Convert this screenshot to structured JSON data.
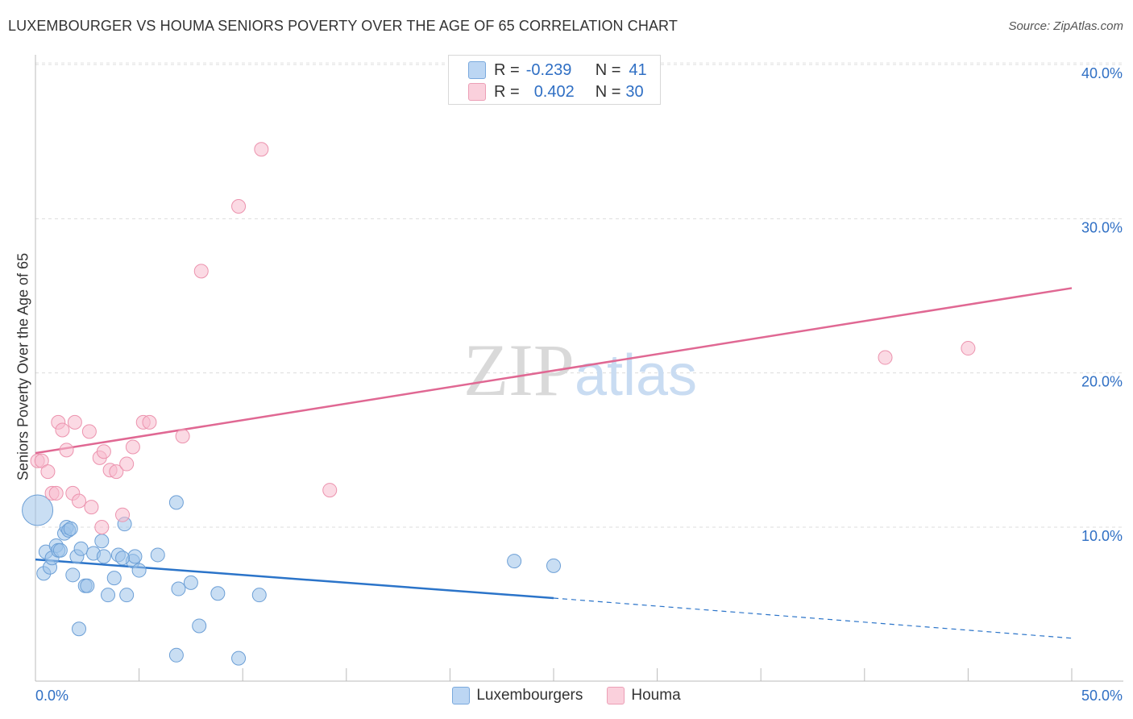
{
  "chart_data": {
    "type": "scatter",
    "title": "LUXEMBOURGER VS HOUMA SENIORS POVERTY OVER THE AGE OF 65 CORRELATION CHART",
    "source": "Source: ZipAtlas.com",
    "xlabel": "",
    "ylabel": "Seniors Poverty Over the Age of 65",
    "xlim": [
      0,
      50
    ],
    "ylim": [
      0,
      40
    ],
    "x_tick_labels": [
      "0.0%",
      "50.0%"
    ],
    "y_ticks": [
      10,
      20,
      30,
      40
    ],
    "y_tick_labels": [
      "10.0%",
      "20.0%",
      "30.0%",
      "40.0%"
    ],
    "grid": true,
    "watermark": "ZIPatlas",
    "stats": [
      {
        "r_label": "R =",
        "r_value": "-0.239",
        "n_label": "N =",
        "n_value": "41"
      },
      {
        "r_label": "R =",
        "r_value": "0.402",
        "n_label": "N =",
        "n_value": "30"
      }
    ],
    "series": [
      {
        "name": "Luxembourgers",
        "color": "#9dc3ea",
        "stroke": "#6c9fd6",
        "line_color": "#2b74c9",
        "trend": {
          "x0": 0,
          "y0": 7.9,
          "x1": 25,
          "y1": 5.4,
          "dash_x1": 50,
          "dash_y1": 2.8
        },
        "points": [
          {
            "x": 0.1,
            "y": 11.1,
            "big": true
          },
          {
            "x": 0.4,
            "y": 7.0
          },
          {
            "x": 0.5,
            "y": 8.4
          },
          {
            "x": 0.7,
            "y": 7.4
          },
          {
            "x": 0.8,
            "y": 8.0
          },
          {
            "x": 1.0,
            "y": 8.8
          },
          {
            "x": 1.1,
            "y": 8.5
          },
          {
            "x": 1.2,
            "y": 8.5
          },
          {
            "x": 1.4,
            "y": 9.6
          },
          {
            "x": 1.5,
            "y": 10.0
          },
          {
            "x": 1.6,
            "y": 9.8
          },
          {
            "x": 1.7,
            "y": 9.9
          },
          {
            "x": 1.8,
            "y": 6.9
          },
          {
            "x": 2.0,
            "y": 8.1
          },
          {
            "x": 2.1,
            "y": 3.4
          },
          {
            "x": 2.2,
            "y": 8.6
          },
          {
            "x": 2.4,
            "y": 6.2
          },
          {
            "x": 2.5,
            "y": 6.2
          },
          {
            "x": 2.8,
            "y": 8.3
          },
          {
            "x": 3.2,
            "y": 9.1
          },
          {
            "x": 3.3,
            "y": 8.1
          },
          {
            "x": 3.5,
            "y": 5.6
          },
          {
            "x": 3.8,
            "y": 6.7
          },
          {
            "x": 4.0,
            "y": 8.2
          },
          {
            "x": 4.3,
            "y": 10.2
          },
          {
            "x": 4.4,
            "y": 5.6
          },
          {
            "x": 4.7,
            "y": 7.8
          },
          {
            "x": 4.8,
            "y": 8.1
          },
          {
            "x": 5.0,
            "y": 7.2
          },
          {
            "x": 5.9,
            "y": 8.2
          },
          {
            "x": 6.8,
            "y": 11.6
          },
          {
            "x": 6.8,
            "y": 1.7
          },
          {
            "x": 6.9,
            "y": 6.0
          },
          {
            "x": 7.5,
            "y": 6.4
          },
          {
            "x": 7.9,
            "y": 3.6
          },
          {
            "x": 8.8,
            "y": 5.7
          },
          {
            "x": 9.8,
            "y": 1.5
          },
          {
            "x": 10.8,
            "y": 5.6
          },
          {
            "x": 23.1,
            "y": 7.8
          },
          {
            "x": 25.0,
            "y": 7.5
          },
          {
            "x": 4.2,
            "y": 8.0
          }
        ]
      },
      {
        "name": "Houma",
        "color": "#f7bccd",
        "stroke": "#ec93ae",
        "line_color": "#e06893",
        "trend": {
          "x0": 0,
          "y0": 14.8,
          "x1": 50,
          "y1": 25.5
        },
        "points": [
          {
            "x": 0.1,
            "y": 14.3
          },
          {
            "x": 0.3,
            "y": 14.3
          },
          {
            "x": 0.6,
            "y": 13.6
          },
          {
            "x": 0.8,
            "y": 12.2
          },
          {
            "x": 1.0,
            "y": 12.2
          },
          {
            "x": 1.1,
            "y": 16.8
          },
          {
            "x": 1.3,
            "y": 16.3
          },
          {
            "x": 1.5,
            "y": 15.0
          },
          {
            "x": 1.8,
            "y": 12.2
          },
          {
            "x": 1.9,
            "y": 16.8
          },
          {
            "x": 2.1,
            "y": 11.7
          },
          {
            "x": 2.6,
            "y": 16.2
          },
          {
            "x": 2.7,
            "y": 11.3
          },
          {
            "x": 3.1,
            "y": 14.5
          },
          {
            "x": 3.2,
            "y": 10.0
          },
          {
            "x": 3.3,
            "y": 14.9
          },
          {
            "x": 3.6,
            "y": 13.7
          },
          {
            "x": 3.9,
            "y": 13.6
          },
          {
            "x": 4.2,
            "y": 10.8
          },
          {
            "x": 4.4,
            "y": 14.1
          },
          {
            "x": 4.7,
            "y": 15.2
          },
          {
            "x": 5.2,
            "y": 16.8
          },
          {
            "x": 5.5,
            "y": 16.8
          },
          {
            "x": 7.1,
            "y": 15.9
          },
          {
            "x": 8.0,
            "y": 26.6
          },
          {
            "x": 9.8,
            "y": 30.8
          },
          {
            "x": 10.9,
            "y": 34.5
          },
          {
            "x": 14.2,
            "y": 12.4
          },
          {
            "x": 41.0,
            "y": 21.0
          },
          {
            "x": 45.0,
            "y": 21.6
          }
        ]
      }
    ]
  }
}
